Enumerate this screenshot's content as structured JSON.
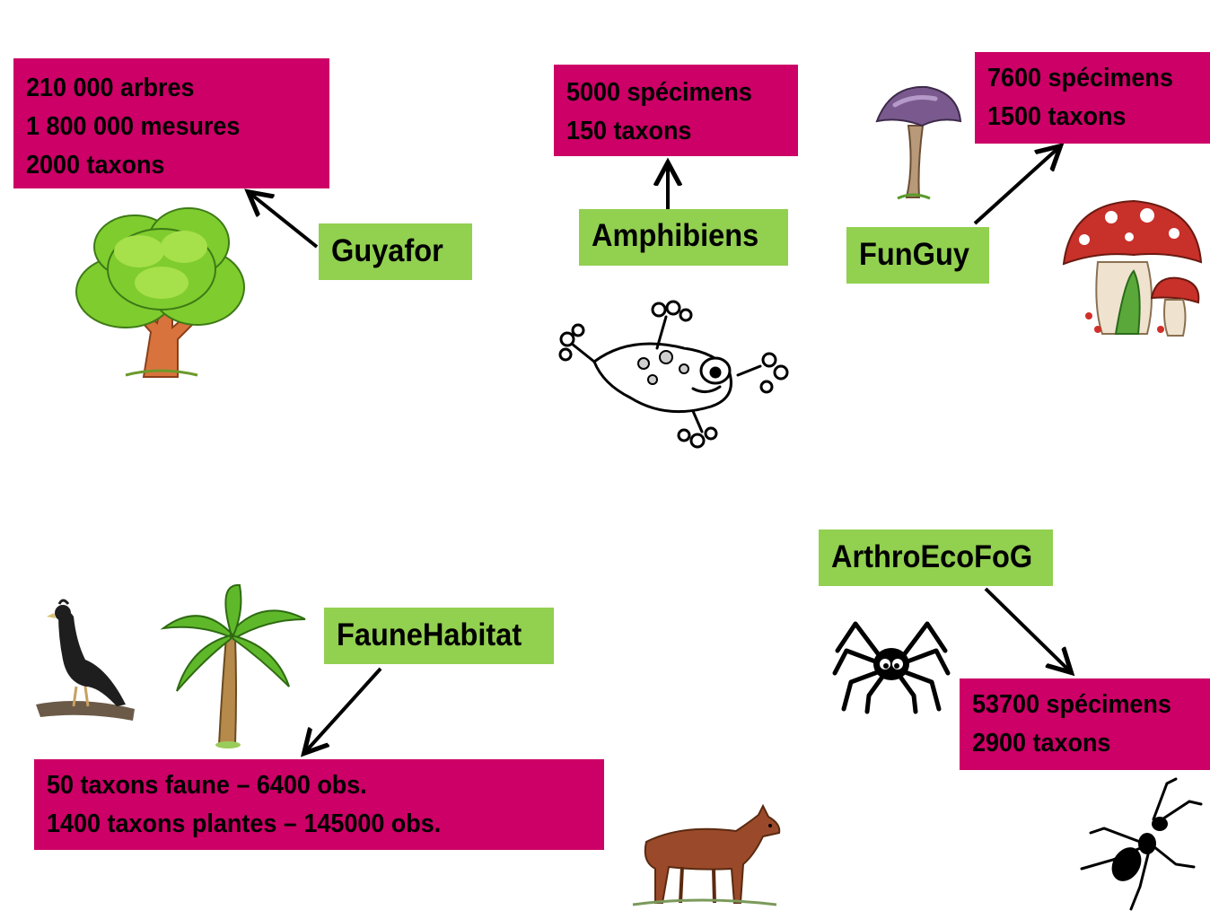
{
  "guyafor": {
    "label": "Guyafor",
    "stats": [
      "210 000 arbres",
      "1 800 000 mesures",
      "2000 taxons"
    ]
  },
  "amphibiens": {
    "label": "Amphibiens",
    "stats": [
      "5000 spécimens",
      "150 taxons"
    ]
  },
  "funguy": {
    "label": "FunGuy",
    "stats": [
      "7600 spécimens",
      "1500 taxons"
    ]
  },
  "faunehabitat": {
    "label": "FauneHabitat",
    "stats": [
      "50 taxons faune – 6400 obs.",
      "1400 taxons plantes – 145000 obs."
    ]
  },
  "arthroecofog": {
    "label": "ArthroEcoFoG",
    "stats": [
      "53700 spécimens",
      "2900 taxons"
    ]
  },
  "colors": {
    "stat_box": "#cc0066",
    "label_box": "#92d050",
    "arrow": "#000000"
  },
  "icons": [
    "tree-icon",
    "frog-icon",
    "purple-mushroom-icon",
    "red-mushrooms-icon",
    "bird-icon",
    "palm-tree-icon",
    "deer-icon",
    "spider-icon",
    "ant-icon"
  ]
}
